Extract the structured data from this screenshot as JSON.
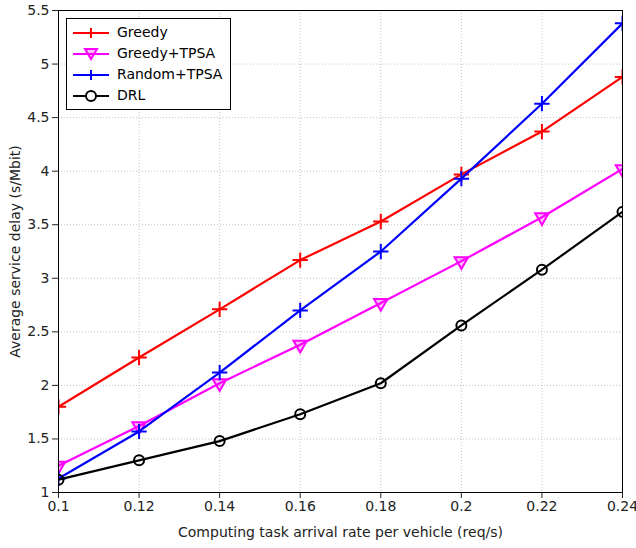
{
  "chart_data": {
    "type": "line",
    "x_label": "Computing task arrival rate per vehicle (req/s)",
    "y_label": "Average service delay (s/Mbit)",
    "x": [
      0.1,
      0.12,
      0.14,
      0.16,
      0.18,
      0.2,
      0.22,
      0.24
    ],
    "xlim": [
      0.1,
      0.24
    ],
    "xticks": [
      0.1,
      0.12,
      0.14,
      0.16,
      0.18,
      0.2,
      0.22,
      0.24
    ],
    "ylim": [
      1,
      5.5
    ],
    "yticks": [
      1,
      1.5,
      2,
      2.5,
      3,
      3.5,
      4,
      4.5,
      5,
      5.5
    ],
    "grid": true,
    "legend": "top-left",
    "series": [
      {
        "name": "Greedy",
        "color": "#ff0000",
        "marker": "plus",
        "values": [
          1.8,
          2.26,
          2.71,
          3.17,
          3.53,
          3.97,
          4.37,
          4.88
        ]
      },
      {
        "name": "Greedy+TPSA",
        "color": "#ff00ff",
        "marker": "triangle-down",
        "values": [
          1.25,
          1.62,
          2.02,
          2.38,
          2.77,
          3.16,
          3.57,
          4.02
        ]
      },
      {
        "name": "Random+TPSA",
        "color": "#0000ff",
        "marker": "plus",
        "values": [
          1.13,
          1.57,
          2.12,
          2.7,
          3.25,
          3.93,
          4.63,
          5.38
        ]
      },
      {
        "name": "DRL",
        "color": "#000000",
        "marker": "circle",
        "values": [
          1.12,
          1.3,
          1.48,
          1.73,
          2.02,
          2.56,
          3.08,
          3.62
        ]
      }
    ]
  }
}
